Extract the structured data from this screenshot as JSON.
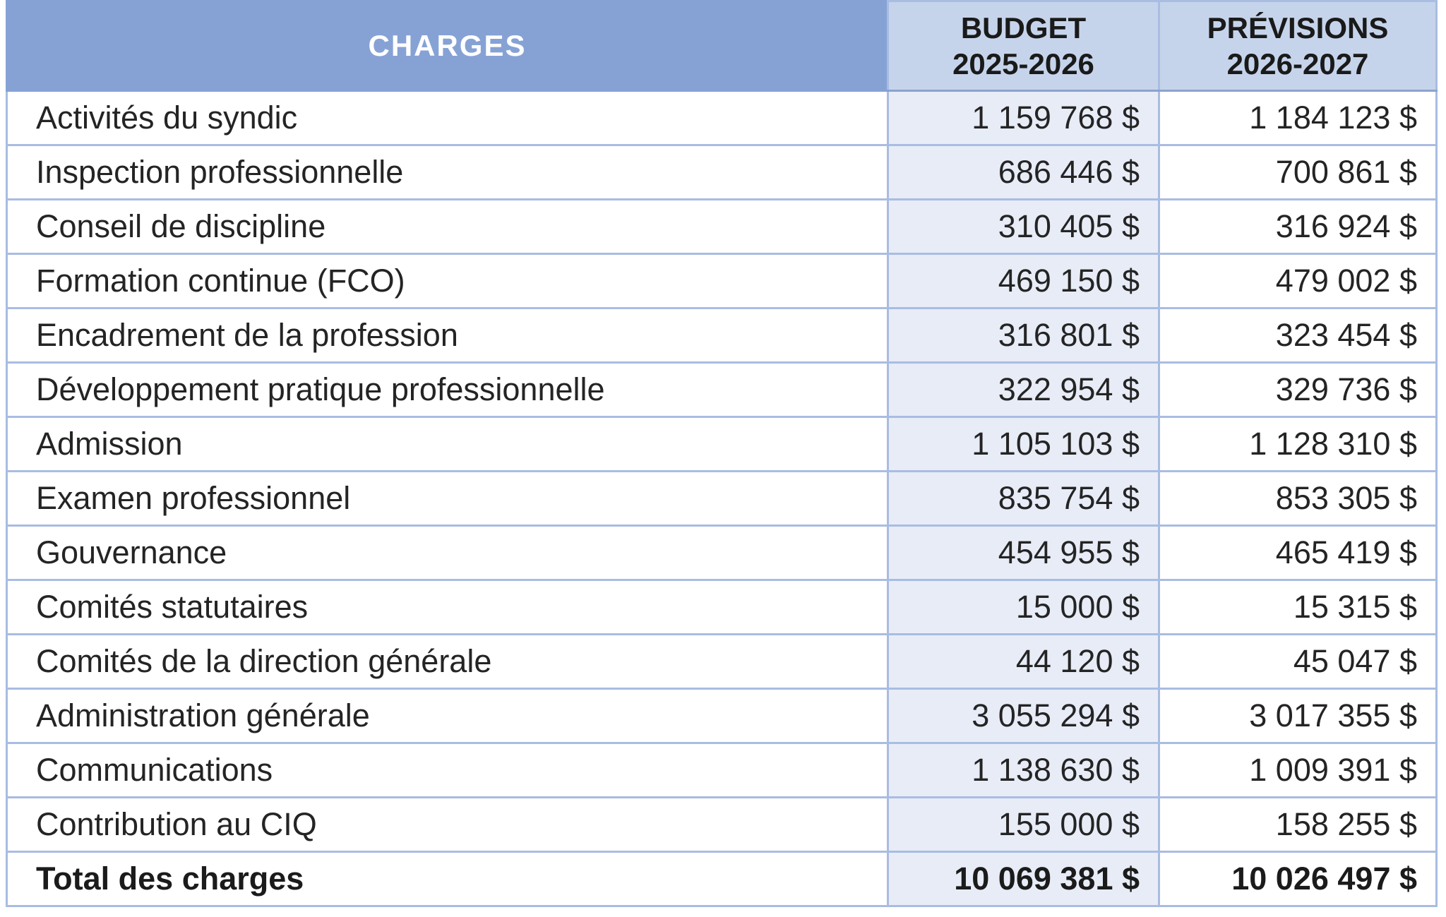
{
  "header": {
    "charges_label": "CHARGES",
    "budget_line1": "BUDGET",
    "budget_line2": "2025-2026",
    "previsions_line1": "PRÉVISIONS",
    "previsions_line2": "2026-2027"
  },
  "chart_data": {
    "type": "table",
    "columns": [
      "CHARGES",
      "BUDGET 2025-2026",
      "PRÉVISIONS 2026-2027"
    ],
    "rows": [
      {
        "label": "Activités du syndic",
        "budget": "1 159 768 $",
        "previsions": "1 184 123 $"
      },
      {
        "label": "Inspection professionnelle",
        "budget": "686 446 $",
        "previsions": "700 861 $"
      },
      {
        "label": "Conseil de discipline",
        "budget": "310 405 $",
        "previsions": "316 924 $"
      },
      {
        "label": "Formation continue (FCO)",
        "budget": "469 150 $",
        "previsions": "479 002 $"
      },
      {
        "label": "Encadrement de la profession",
        "budget": "316 801 $",
        "previsions": "323 454 $"
      },
      {
        "label": "Développement pratique professionnelle",
        "budget": "322 954 $",
        "previsions": "329 736 $"
      },
      {
        "label": "Admission",
        "budget": "1 105 103 $",
        "previsions": "1 128 310 $"
      },
      {
        "label": "Examen professionnel",
        "budget": "835 754 $",
        "previsions": "853 305 $"
      },
      {
        "label": "Gouvernance",
        "budget": "454 955 $",
        "previsions": "465 419 $"
      },
      {
        "label": "Comités statutaires",
        "budget": "15 000 $",
        "previsions": "15 315 $"
      },
      {
        "label": "Comités de la direction générale",
        "budget": "44 120 $",
        "previsions": "45 047 $"
      },
      {
        "label": "Administration générale",
        "budget": "3 055 294 $",
        "previsions": "3 017 355 $"
      },
      {
        "label": "Communications",
        "budget": "1 138 630 $",
        "previsions": "1 009 391 $"
      },
      {
        "label": "Contribution au CIQ",
        "budget": "155 000 $",
        "previsions": "158 255 $"
      }
    ],
    "total": {
      "label": "Total des charges",
      "budget": "10 069 381 $",
      "previsions": "10 026 497 $"
    }
  },
  "colors": {
    "header_fill": "#86a2d5",
    "header_text": "#ffffff",
    "subheader_fill": "#c6d4eb",
    "budget_column_fill": "#e7ecf7",
    "border": "#a9bce2",
    "body_text": "#242424"
  }
}
